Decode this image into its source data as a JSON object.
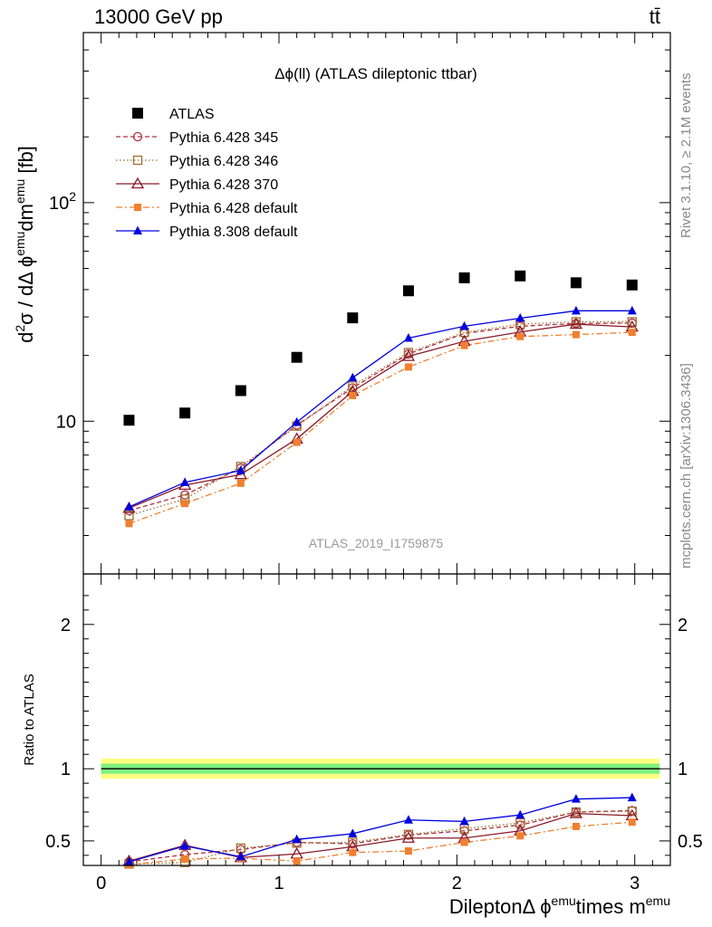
{
  "header": {
    "energy_label": "13000 GeV pp",
    "process_label": "tt̄"
  },
  "side_labels": {
    "rivet": "Rivet 3.1.10, ≥ 2.1M events",
    "mcplots": "mcplots.cern.ch [arXiv:1306.3436]"
  },
  "chart_data": [
    {
      "type": "scatter",
      "title": "Δϕ(ll) (ATLAS dileptonic ttbar)",
      "analysis_id": "ATLAS_2019_I1759875",
      "ylabel_parts": {
        "d": "d",
        "two": "2",
        "sigma": "σ / dΔ ϕ",
        "emu1": "emu",
        "dm": "dm",
        "emu2": "emu",
        "fb": " [fb]"
      },
      "yscale": "log",
      "ylim": [
        2.0,
        600
      ],
      "xlim": [
        -0.1,
        3.2
      ],
      "y_ticks": [
        {
          "value": 10,
          "label": "10"
        },
        {
          "value": 100,
          "label": "10",
          "sup": "2"
        }
      ],
      "legend_position": "top-left",
      "x": [
        0.157,
        0.471,
        0.785,
        1.1,
        1.414,
        1.728,
        2.042,
        2.356,
        2.67,
        2.985
      ],
      "series": [
        {
          "name": "ATLAS",
          "color": "#000000",
          "marker": "square",
          "line": "none",
          "values": [
            10.1,
            10.9,
            13.8,
            19.6,
            29.7,
            39.5,
            45.3,
            46.2,
            43.0,
            42.0
          ]
        },
        {
          "name": "Pythia 6.428 345",
          "color": "#b03040",
          "marker": "open-circle",
          "line": "dashed",
          "values": [
            3.9,
            4.6,
            6.1,
            9.6,
            14.2,
            20.3,
            25.2,
            27.2,
            28.0,
            28.1
          ]
        },
        {
          "name": "Pythia 6.428 346",
          "color": "#9a7030",
          "marker": "open-square",
          "line": "dotted",
          "values": [
            3.7,
            4.4,
            6.2,
            9.5,
            14.5,
            20.6,
            25.5,
            27.8,
            28.5,
            28.5
          ]
        },
        {
          "name": "Pythia 6.428 370",
          "color": "#8b1a2a",
          "marker": "open-triangle",
          "line": "solid",
          "values": [
            4.0,
            5.1,
            5.7,
            8.3,
            13.7,
            19.8,
            23.2,
            25.6,
            27.8,
            27.0
          ]
        },
        {
          "name": "Pythia 6.428 default",
          "color": "#f07f30",
          "marker": "filled-square",
          "line": "dashdot",
          "values": [
            3.4,
            4.2,
            5.2,
            8.0,
            13.1,
            17.7,
            22.2,
            24.4,
            24.9,
            25.5
          ]
        },
        {
          "name": "Pythia 8.308 default",
          "color": "#0000e0",
          "marker": "filled-triangle",
          "line": "solid",
          "values": [
            4.05,
            5.25,
            5.95,
            9.9,
            15.8,
            24.0,
            27.2,
            29.6,
            32.0,
            32.0
          ]
        }
      ]
    },
    {
      "type": "line",
      "ylabel": "Ratio to ATLAS",
      "xlabel_parts": {
        "main": "DileptonΔ ϕ",
        "emu1": "emu",
        "times": "times m",
        "emu2": "emu"
      },
      "ylim": [
        0.33,
        2.35
      ],
      "xlim": [
        -0.1,
        3.2
      ],
      "x_ticks": [
        0,
        1,
        2,
        3
      ],
      "y_ticks": [
        0.5,
        1,
        2
      ],
      "band_outer": 0.07,
      "band_inner": 0.035,
      "band_outer_color": "#ffff80",
      "band_inner_color": "#80f080",
      "x": [
        0.157,
        0.471,
        0.785,
        1.1,
        1.414,
        1.728,
        2.042,
        2.356,
        2.67,
        2.985
      ],
      "series": [
        {
          "name": "Pythia 6.428 345",
          "values": [
            0.355,
            0.405,
            0.44,
            0.49,
            0.48,
            0.54,
            0.57,
            0.61,
            0.7,
            0.71
          ]
        },
        {
          "name": "Pythia 6.428 346",
          "values": [
            0.34,
            0.35,
            0.45,
            0.485,
            0.49,
            0.545,
            0.585,
            0.625,
            0.7,
            0.705
          ]
        },
        {
          "name": "Pythia 6.428 370",
          "values": [
            0.36,
            0.47,
            0.385,
            0.41,
            0.46,
            0.52,
            0.52,
            0.57,
            0.69,
            0.675
          ]
        },
        {
          "name": "Pythia 6.428 default",
          "values": [
            0.335,
            0.375,
            0.38,
            0.36,
            0.42,
            0.43,
            0.49,
            0.535,
            0.6,
            0.63
          ]
        },
        {
          "name": "Pythia 8.308 default",
          "values": [
            0.355,
            0.465,
            0.39,
            0.51,
            0.55,
            0.645,
            0.635,
            0.68,
            0.79,
            0.8
          ]
        }
      ]
    }
  ]
}
